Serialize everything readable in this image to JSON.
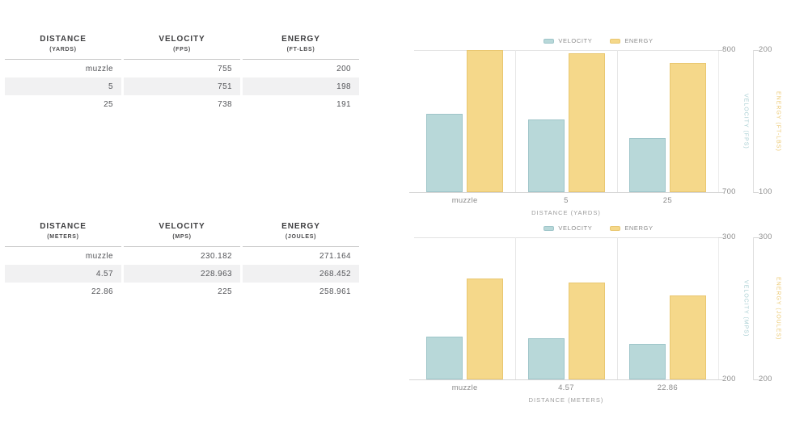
{
  "page": {
    "background": "#ffffff"
  },
  "tables": [
    {
      "name": "yards",
      "columns": [
        {
          "label": "DISTANCE",
          "unit": "(YARDS)"
        },
        {
          "label": "VELOCITY",
          "unit": "(FPS)"
        },
        {
          "label": "ENERGY",
          "unit": "(FT-LBS)"
        }
      ],
      "rows": [
        [
          "muzzle",
          "755",
          "200"
        ],
        [
          "5",
          "751",
          "198"
        ],
        [
          "25",
          "738",
          "191"
        ]
      ]
    },
    {
      "name": "meters",
      "columns": [
        {
          "label": "DISTANCE",
          "unit": "(METERS)"
        },
        {
          "label": "VELOCITY",
          "unit": "(MPS)"
        },
        {
          "label": "ENERGY",
          "unit": "(JOULES)"
        }
      ],
      "rows": [
        [
          "muzzle",
          "230.182",
          "271.164"
        ],
        [
          "4.57",
          "228.963",
          "268.452"
        ],
        [
          "22.86",
          "225",
          "258.961"
        ]
      ]
    }
  ],
  "chart_data": [
    {
      "type": "bar",
      "categories": [
        "muzzle",
        "5",
        "25"
      ],
      "xlabel": "DISTANCE (YARDS)",
      "legend": [
        "VELOCITY",
        "ENERGY"
      ],
      "legend_position": "top",
      "grid": "category-separators",
      "series": [
        {
          "name": "VELOCITY",
          "values": [
            755,
            751,
            738
          ],
          "ylim": [
            700,
            800
          ],
          "yticks": [
            800,
            700
          ],
          "axis_title": "VELOCITY (FPS)"
        },
        {
          "name": "ENERGY",
          "values": [
            200,
            198,
            191
          ],
          "ylim": [
            100,
            200
          ],
          "yticks": [
            200,
            100
          ],
          "axis_title": "ENERGY (FT-LBS)"
        }
      ]
    },
    {
      "type": "bar",
      "categories": [
        "muzzle",
        "4.57",
        "22.86"
      ],
      "xlabel": "DISTANCE (METERS)",
      "legend": [
        "VELOCITY",
        "ENERGY"
      ],
      "legend_position": "top",
      "grid": "category-separators",
      "series": [
        {
          "name": "VELOCITY",
          "values": [
            230.182,
            228.963,
            225
          ],
          "ylim": [
            200,
            300
          ],
          "yticks": [
            300,
            200
          ],
          "axis_title": "VELOCITY (MPS)"
        },
        {
          "name": "ENERGY",
          "values": [
            271.164,
            268.452,
            258.961
          ],
          "ylim": [
            200,
            300
          ],
          "yticks": [
            300,
            200
          ],
          "axis_title": "ENERGY (JOULES)"
        }
      ]
    }
  ],
  "colors": {
    "velocity_fill": "#b8d8d9",
    "velocity_border": "#9ec5c9",
    "velocity_label": "#a8ced2",
    "energy_fill": "#f5d88a",
    "energy_border": "#e9c771",
    "energy_label": "#ecc973",
    "grid": "#e7e7e7",
    "axis_line": "#d6d6d6",
    "tick_text": "#8e8e8e",
    "table_header_text": "#3e3e40",
    "table_cell_text": "#55565a",
    "table_stripe": "#f1f1f2",
    "table_rule": "#c9c9c9"
  }
}
